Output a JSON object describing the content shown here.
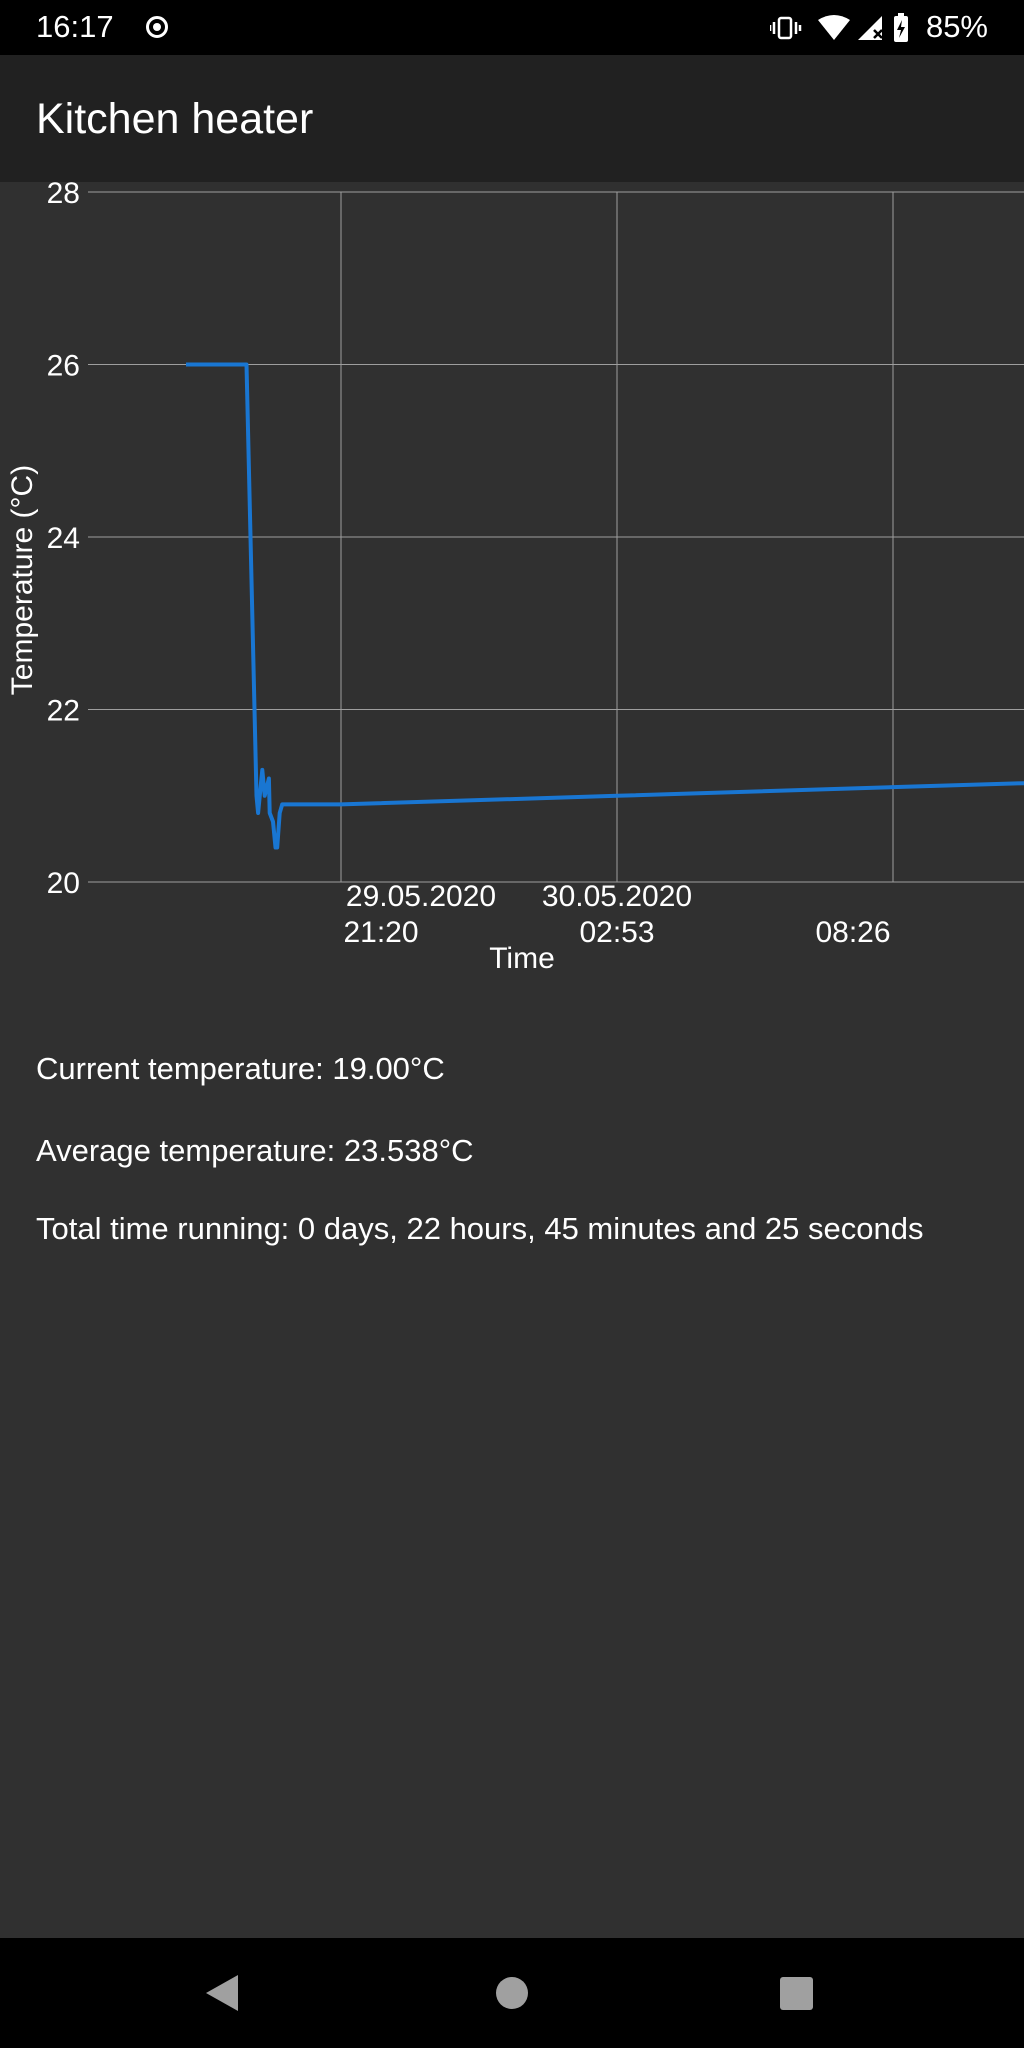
{
  "status_bar": {
    "time": "16:17",
    "battery": "85%",
    "icons": [
      "record-icon",
      "vibrate-icon",
      "wifi-icon",
      "cellular-no-signal-icon",
      "battery-charging-icon"
    ]
  },
  "app_bar": {
    "title": "Kitchen heater"
  },
  "chart_data": {
    "type": "line",
    "title": "",
    "xlabel": "Time",
    "ylabel": "Temperature (°C)",
    "ylim": [
      20,
      28
    ],
    "yticks": [
      "20",
      "22",
      "24",
      "26",
      "28"
    ],
    "xticks": [
      {
        "line1": "29.05.2020",
        "line2": "21:20"
      },
      {
        "line1": "30.05.2020",
        "line2": "02:53"
      },
      {
        "line1": "",
        "line2": "08:26"
      }
    ],
    "grid": true,
    "series": [
      {
        "color": "#1976D2",
        "x": [
          "29.05.2020 18:13",
          "29.05.2020 19:26",
          "29.05.2020 19:38",
          "29.05.2020 19:40",
          "29.05.2020 19:43",
          "29.05.2020 19:45",
          "29.05.2020 19:48",
          "29.05.2020 19:53",
          "29.05.2020 19:54",
          "29.05.2020 19:58",
          "29.05.2020 20:01",
          "29.05.2020 20:03",
          "29.05.2020 20:06",
          "29.05.2020 20:09",
          "29.05.2020 20:10",
          "29.05.2020 20:14",
          "29.05.2020 20:17",
          "29.05.2020 21:20",
          "30.05.2020 02:53",
          "30.05.2020 08:26",
          "30.05.2020 11:20"
        ],
        "y": [
          26.0,
          26.0,
          21.0,
          20.8,
          21.1,
          21.3,
          21.0,
          21.2,
          20.8,
          20.7,
          20.4,
          20.4,
          20.8,
          20.9,
          20.9,
          20.9,
          20.9,
          20.9,
          21.0,
          21.1,
          21.15
        ]
      }
    ]
  },
  "info": {
    "current": "Current temperature: 19.00°C",
    "average": "Average temperature: 23.538°C",
    "running": "Total time running: 0 days, 22 hours, 45 minutes and 25 seconds"
  },
  "nav_bar": {
    "icons": [
      "back-icon",
      "home-icon",
      "recents-icon"
    ]
  }
}
